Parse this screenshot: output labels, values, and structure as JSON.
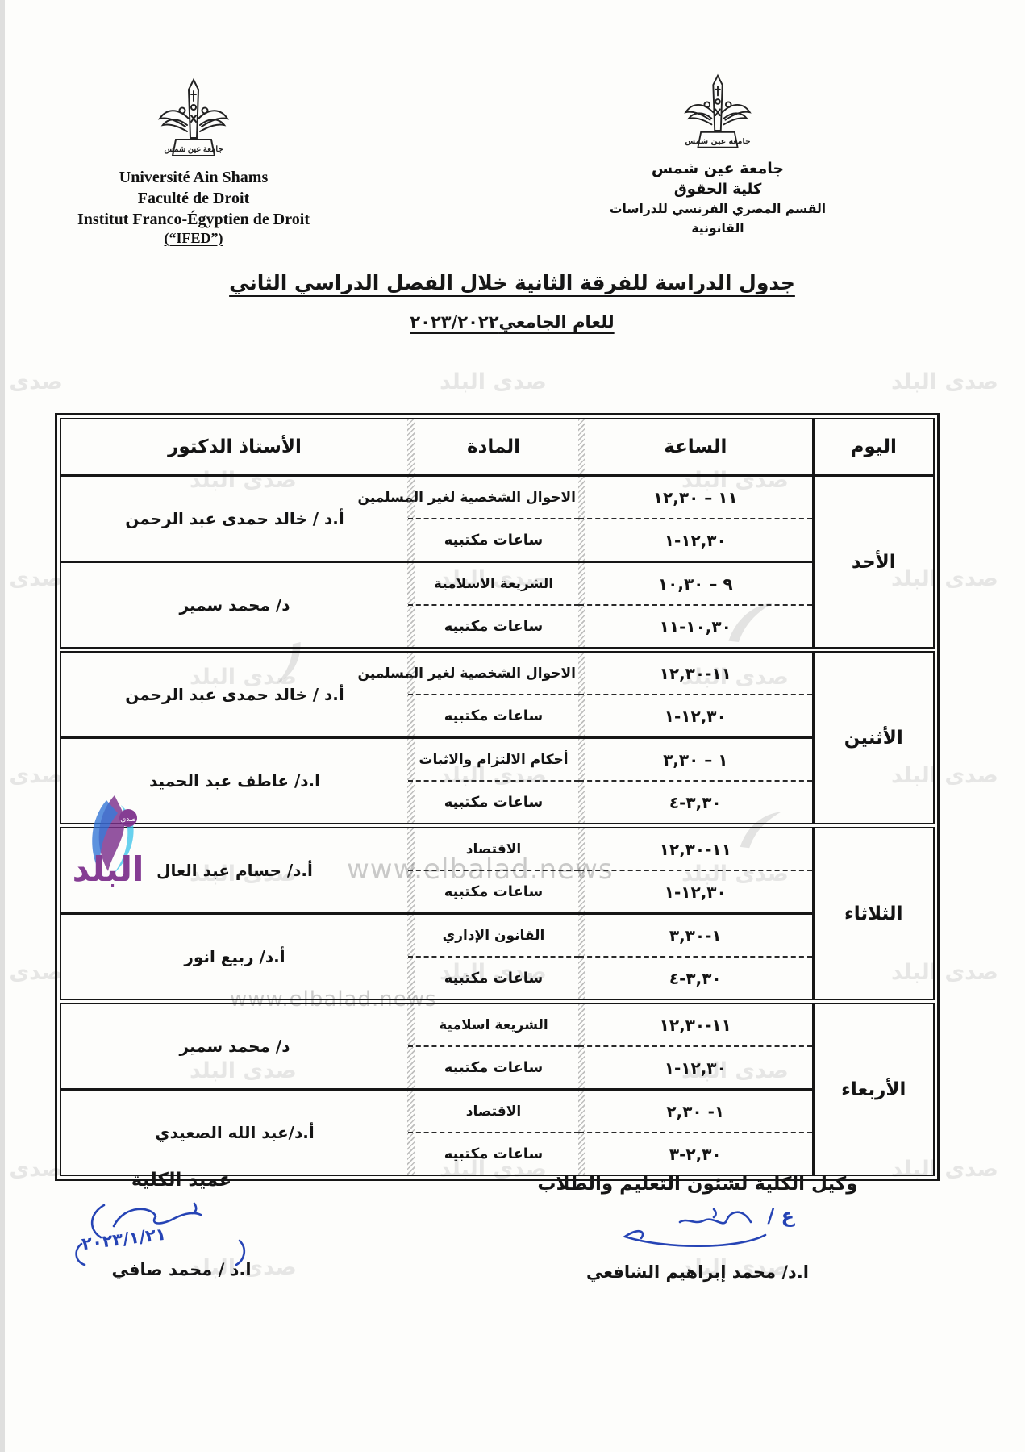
{
  "header": {
    "left": {
      "university": "Université Ain Shams",
      "faculty": "Faculté de Droit",
      "institute": "Institut Franco-Égyptien de Droit",
      "ifed": "(“IFED”)"
    },
    "right": {
      "university": "جامعة عين شمس",
      "faculty": "كلية الحقوق",
      "department": "القسم المصري الفرنسي للدراسات القانونية"
    },
    "logo_caption": "جامعة عين شمس"
  },
  "title": {
    "main": "جدول الدراسة للفرقة الثانية خلال الفصل الدراسي الثاني",
    "year_line": "للعام الجامعي٢٠٢٣/٢٠٢٢"
  },
  "table": {
    "columns": {
      "day": "اليوم",
      "hour": "الساعة",
      "subject": "المادة",
      "professor": "الأستاذ الدكتور"
    },
    "office_hours_label": "ساعات مكتبيه",
    "days": [
      {
        "name": "الأحد",
        "courses": [
          {
            "subject": "الاحوال الشخصية لغير المسلمين",
            "lecture_time": "١١ – ١٢,٣٠",
            "office_time": "١٢,٣٠-١",
            "professor": "أ.د / خالد حمدى عبد الرحمن"
          },
          {
            "subject": "الشريعة الاسلامية",
            "lecture_time": "٩ – ١٠,٣٠",
            "office_time": "١٠,٣٠-١١",
            "professor": "د/ محمد سمير"
          }
        ]
      },
      {
        "name": "الأثنين",
        "courses": [
          {
            "subject": "الاحوال الشخصية لغير المسلمين",
            "lecture_time": "١١-١٢,٣٠",
            "office_time": "١٢,٣٠-١",
            "professor": "أ.د / خالد حمدى عبد الرحمن"
          },
          {
            "subject": "أحكام الالتزام والاثبات",
            "lecture_time": "١ – ٣,٣٠",
            "office_time": "٣,٣٠-٤",
            "professor": "ا.د/ عاطف عبد الحميد"
          }
        ]
      },
      {
        "name": "الثلاثاء",
        "courses": [
          {
            "subject": "الاقتصاد",
            "lecture_time": "١١-١٢,٣٠",
            "office_time": "١٢,٣٠-١",
            "professor": "أ.د/ حسام عبد العال"
          },
          {
            "subject": "القانون الإداري",
            "lecture_time": "١-٣,٣٠",
            "office_time": "٣,٣٠-٤",
            "professor": "أ.د/ ربيع انور"
          }
        ]
      },
      {
        "name": "الأربعاء",
        "courses": [
          {
            "subject": "الشريعة اسلامية",
            "lecture_time": "١١-١٢,٣٠",
            "office_time": "١٢,٣٠-١",
            "professor": "د/ محمد سمير"
          },
          {
            "subject": "الاقتصاد",
            "lecture_time": "١- ٢,٣٠",
            "office_time": "٢,٣٠-٣",
            "professor": "أ.د/عبد الله الصعيدي"
          }
        ]
      }
    ]
  },
  "footer": {
    "right": {
      "title": "وكيل الكلية لشئون التعليم والطلاب",
      "signature_initial": "ع /",
      "name": "ا.د/ محمد إبراهيم الشافعي"
    },
    "left": {
      "title": "عميد الكلية",
      "signature_date": "٢٠٢٣/١/٢١",
      "name": "ا.د / محمد صافي"
    }
  },
  "watermark": {
    "text": "صدى البلد",
    "url": "www.elbalad.news",
    "logo_text": "البلد",
    "logo_small_text": "صدى",
    "colors": {
      "ink_blue": "#2644b5",
      "logo_purple": "#7b2d8b",
      "logo_blue": "#2a6fd4",
      "logo_cyan": "#38c3ea",
      "watermark_gray": "#8f8f8f"
    }
  }
}
